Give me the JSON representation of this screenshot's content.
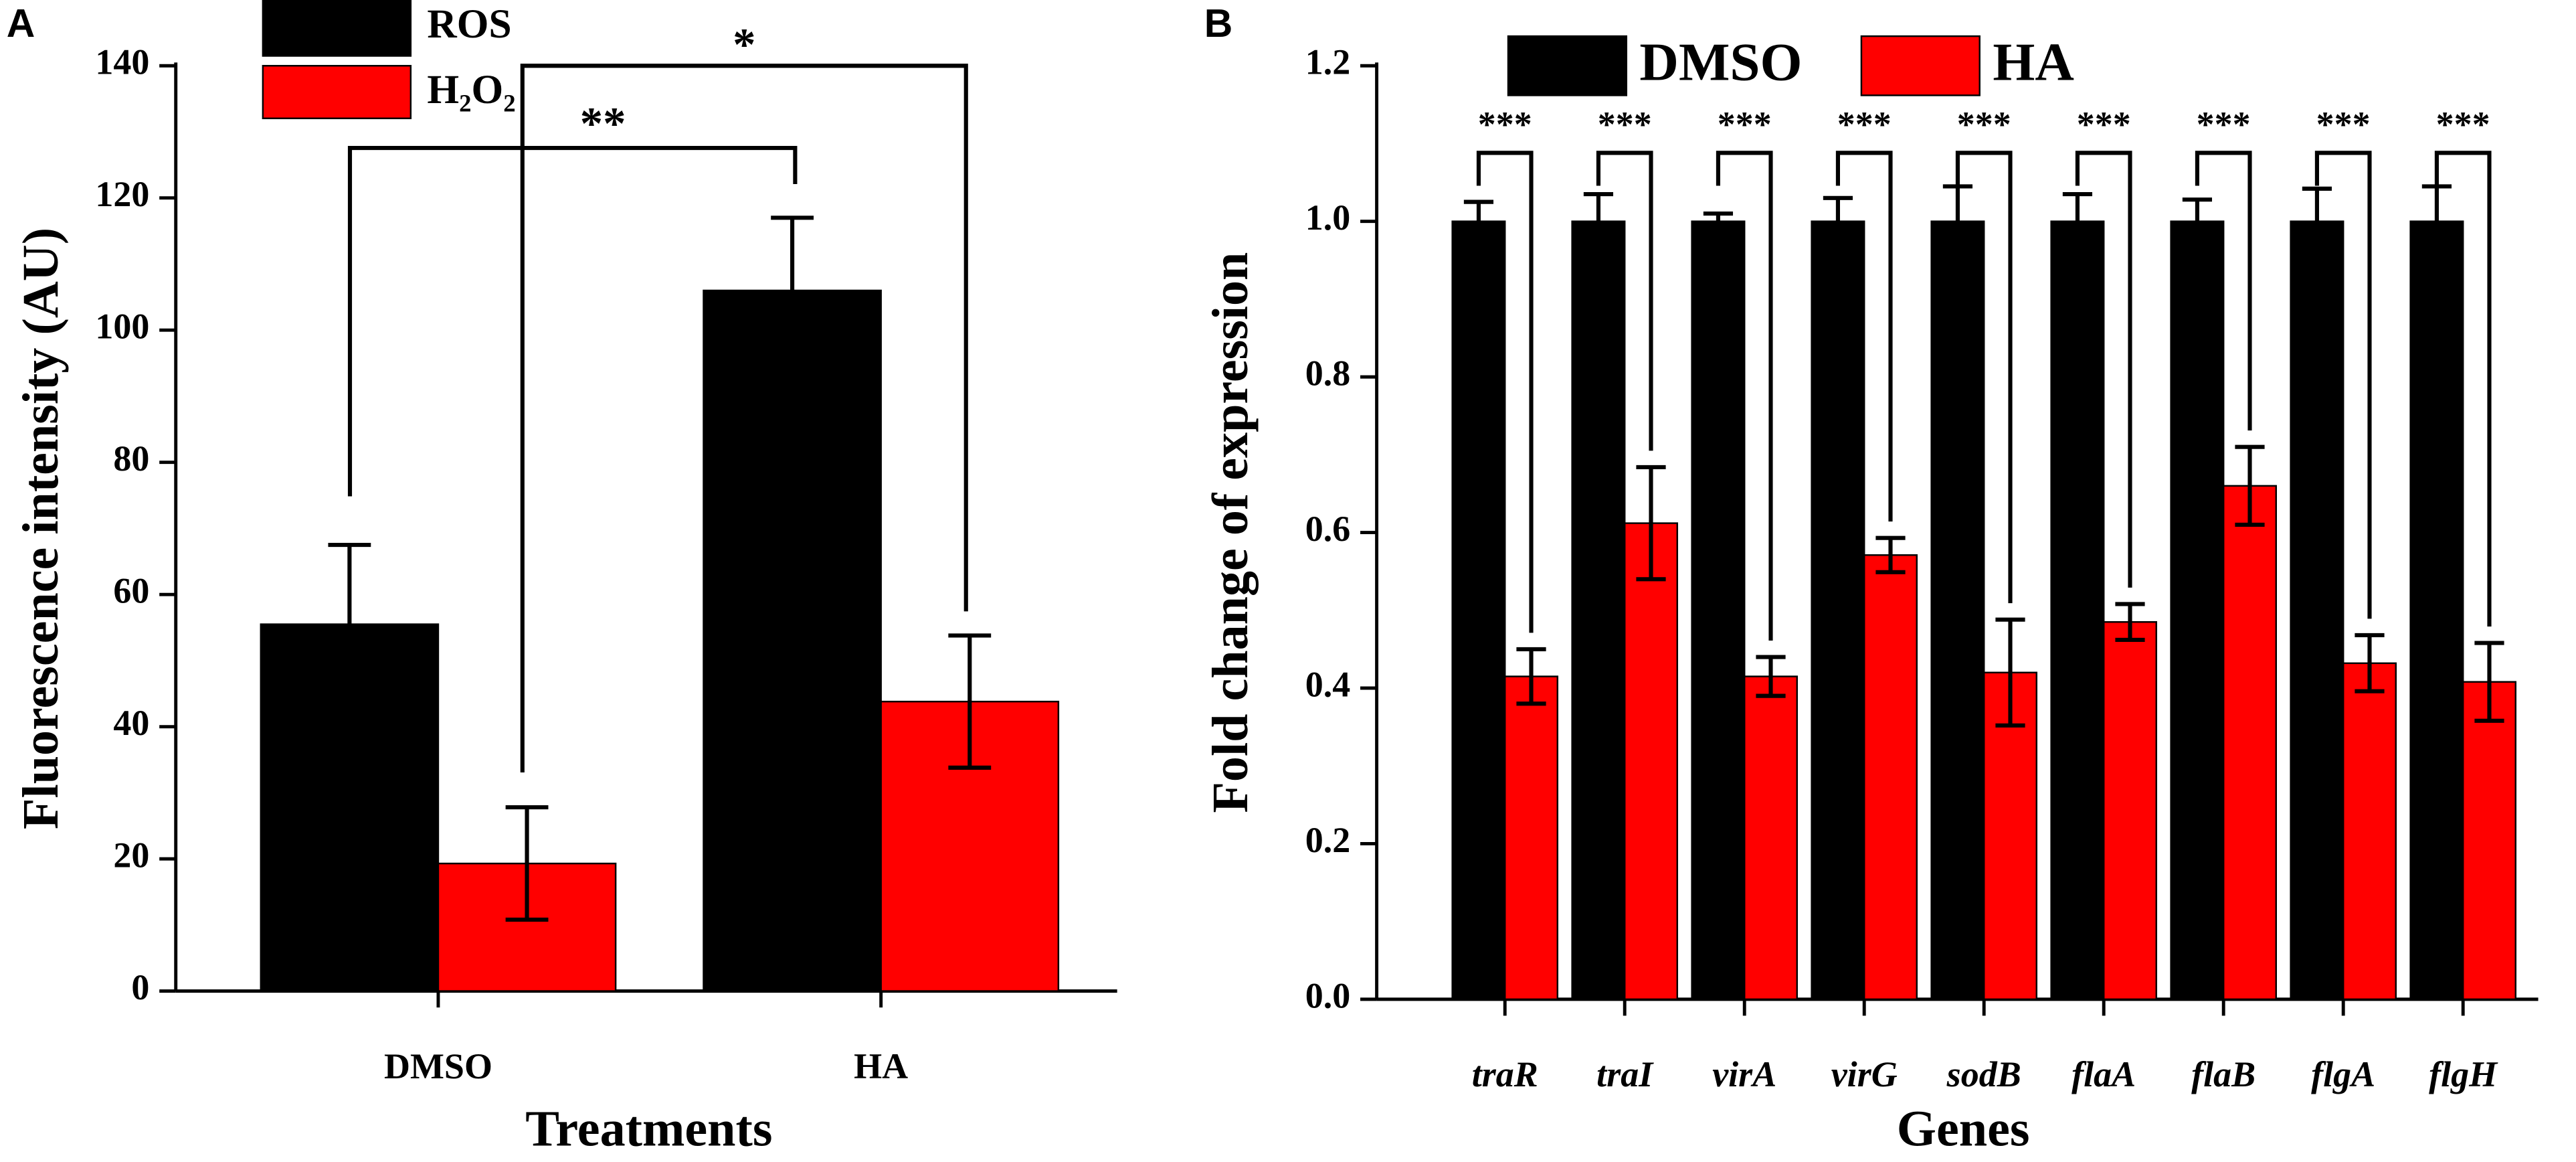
{
  "chart_data": [
    {
      "type": "bar",
      "panel": "A",
      "xlabel": "Treatments",
      "ylabel": "Fluorescence intensity (AU)",
      "categories": [
        "DMSO",
        "HA"
      ],
      "series": [
        {
          "name": "ROS",
          "color": "#000000",
          "values": [
            55.5,
            106
          ],
          "errors": [
            12,
            11
          ]
        },
        {
          "name": "H₂O₂",
          "color": "#ff0000",
          "values": [
            19.3,
            43.8
          ],
          "errors": [
            8.5,
            10
          ]
        }
      ],
      "ylim": [
        0,
        140
      ],
      "yticks": [
        0,
        20,
        40,
        60,
        80,
        100,
        120,
        140
      ],
      "annotations": [
        "**",
        "*"
      ]
    },
    {
      "type": "bar",
      "panel": "B",
      "xlabel": "Genes",
      "ylabel": "Fold change of expression",
      "categories": [
        "traR",
        "traI",
        "virA",
        "virG",
        "sodB",
        "flaA",
        "flaB",
        "flgA",
        "flgH"
      ],
      "series": [
        {
          "name": "DMSO",
          "color": "#000000",
          "values": [
            1.0,
            1.0,
            1.0,
            1.0,
            1.0,
            1.0,
            1.0,
            1.0,
            1.0
          ],
          "errors": [
            0.025,
            0.035,
            0.01,
            0.03,
            0.045,
            0.035,
            0.028,
            0.042,
            0.045
          ]
        },
        {
          "name": "HA",
          "color": "#ff0000",
          "values": [
            0.415,
            0.612,
            0.415,
            0.571,
            0.42,
            0.485,
            0.66,
            0.432,
            0.408
          ],
          "errors": [
            0.035,
            0.072,
            0.025,
            0.022,
            0.068,
            0.023,
            0.05,
            0.036,
            0.05
          ]
        }
      ],
      "ylim": [
        0,
        1.2
      ],
      "yticks": [
        {
          "value": 0,
          "label": "0.0"
        },
        0.2,
        0.4,
        0.6,
        0.8,
        {
          "value": 1,
          "label": "1.0"
        },
        1.2
      ],
      "annotations": [
        "***",
        "***",
        "***",
        "***",
        "***",
        "***",
        "***",
        "***",
        "***"
      ]
    }
  ]
}
